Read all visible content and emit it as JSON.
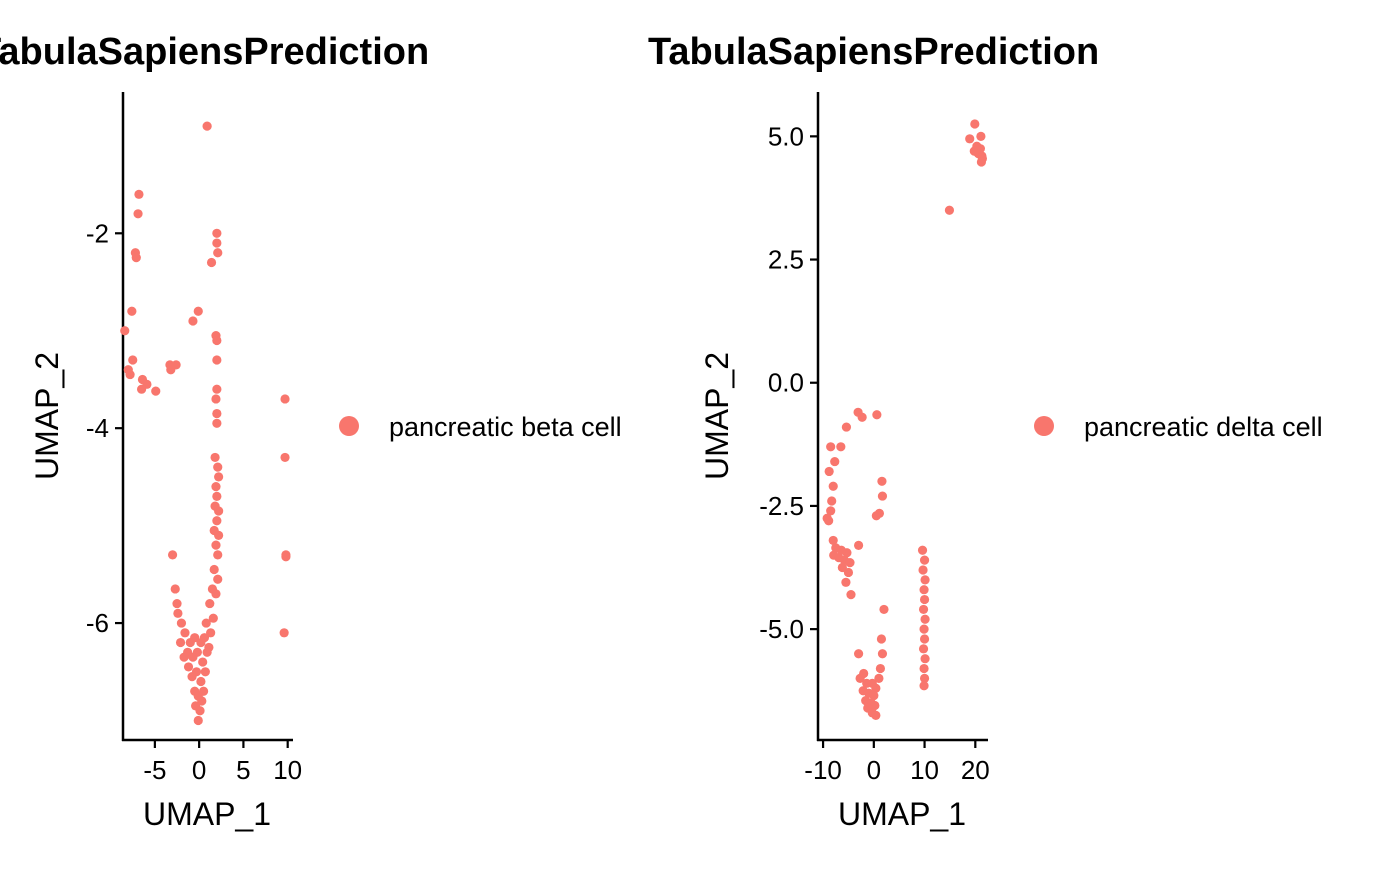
{
  "chart_data": [
    {
      "type": "scatter",
      "title": "TabulaSapiensPrediction",
      "xlabel": "UMAP_1",
      "ylabel": "UMAP_2",
      "xlim": [
        -8.6,
        10.6
      ],
      "ylim": [
        -7.2,
        -0.55
      ],
      "xticks": [
        -5,
        0,
        5,
        10
      ],
      "xtick_labels": [
        "-5",
        "0",
        "5",
        "10"
      ],
      "yticks": [
        -2,
        -4,
        -6
      ],
      "ytick_labels": [
        "-2",
        "-4",
        "-6"
      ],
      "grid": false,
      "legend": "right",
      "series": [
        {
          "name": "pancreatic beta cell",
          "color": "#F8766D",
          "points": [
            [
              0.9,
              -0.9
            ],
            [
              -6.8,
              -1.6
            ],
            [
              -6.9,
              -1.8
            ],
            [
              2.0,
              -2.0
            ],
            [
              2.0,
              -2.1
            ],
            [
              2.1,
              -2.2
            ],
            [
              -7.2,
              -2.2
            ],
            [
              -7.1,
              -2.25
            ],
            [
              1.4,
              -2.3
            ],
            [
              -7.6,
              -2.8
            ],
            [
              -0.1,
              -2.8
            ],
            [
              -0.7,
              -2.9
            ],
            [
              -8.4,
              -3.0
            ],
            [
              1.9,
              -3.05
            ],
            [
              2.0,
              -3.1
            ],
            [
              2.0,
              -3.3
            ],
            [
              -7.5,
              -3.3
            ],
            [
              -3.3,
              -3.35
            ],
            [
              -2.6,
              -3.35
            ],
            [
              -3.2,
              -3.4
            ],
            [
              -8.0,
              -3.4
            ],
            [
              -7.8,
              -3.45
            ],
            [
              -6.4,
              -3.5
            ],
            [
              -5.9,
              -3.55
            ],
            [
              -4.9,
              -3.62
            ],
            [
              -6.5,
              -3.6
            ],
            [
              2.0,
              -3.6
            ],
            [
              1.9,
              -3.7
            ],
            [
              2.0,
              -3.85
            ],
            [
              2.0,
              -3.95
            ],
            [
              9.7,
              -3.7
            ],
            [
              1.8,
              -4.3
            ],
            [
              9.7,
              -4.3
            ],
            [
              2.1,
              -4.4
            ],
            [
              2.2,
              -4.5
            ],
            [
              1.9,
              -4.6
            ],
            [
              2.0,
              -4.7
            ],
            [
              1.8,
              -4.8
            ],
            [
              2.2,
              -4.85
            ],
            [
              2.0,
              -4.95
            ],
            [
              1.7,
              -5.05
            ],
            [
              2.2,
              -5.1
            ],
            [
              1.9,
              -5.2
            ],
            [
              2.1,
              -5.3
            ],
            [
              -3.0,
              -5.3
            ],
            [
              9.8,
              -5.3
            ],
            [
              9.8,
              -5.32
            ],
            [
              1.7,
              -5.45
            ],
            [
              2.1,
              -5.55
            ],
            [
              1.5,
              -5.65
            ],
            [
              -2.7,
              -5.65
            ],
            [
              1.9,
              -5.7
            ],
            [
              -2.5,
              -5.8
            ],
            [
              1.2,
              -5.8
            ],
            [
              -2.4,
              -5.9
            ],
            [
              1.6,
              -5.95
            ],
            [
              -2.0,
              -6.0
            ],
            [
              0.8,
              -6.0
            ],
            [
              1.3,
              -6.1
            ],
            [
              9.6,
              -6.1
            ],
            [
              -1.6,
              -6.1
            ],
            [
              -0.5,
              -6.15
            ],
            [
              0.6,
              -6.15
            ],
            [
              -2.1,
              -6.2
            ],
            [
              -1.0,
              -6.2
            ],
            [
              0.2,
              -6.2
            ],
            [
              1.1,
              -6.25
            ],
            [
              -1.3,
              -6.3
            ],
            [
              -0.2,
              -6.3
            ],
            [
              0.9,
              -6.3
            ],
            [
              -1.7,
              -6.35
            ],
            [
              -0.7,
              -6.35
            ],
            [
              0.4,
              -6.4
            ],
            [
              -1.2,
              -6.45
            ],
            [
              -0.3,
              -6.5
            ],
            [
              0.7,
              -6.5
            ],
            [
              -0.8,
              -6.55
            ],
            [
              0.2,
              -6.6
            ],
            [
              -0.5,
              -6.7
            ],
            [
              0.5,
              -6.7
            ],
            [
              -0.1,
              -6.75
            ],
            [
              0.3,
              -6.8
            ],
            [
              -0.4,
              -6.85
            ],
            [
              0.1,
              -6.9
            ],
            [
              -0.1,
              -7.0
            ]
          ]
        }
      ]
    },
    {
      "type": "scatter",
      "title": "TabulaSapiensPrediction",
      "xlabel": "UMAP_1",
      "ylabel": "UMAP_2",
      "xlim": [
        -11,
        22.5
      ],
      "ylim": [
        -7.25,
        5.9
      ],
      "xticks": [
        -10,
        0,
        10,
        20
      ],
      "xtick_labels": [
        "-10",
        "0",
        "10",
        "20"
      ],
      "yticks": [
        5.0,
        2.5,
        0.0,
        -2.5,
        -5.0
      ],
      "ytick_labels": [
        "5.0",
        "2.5",
        "0.0",
        "-2.5",
        "-5.0"
      ],
      "grid": false,
      "legend": "right",
      "series": [
        {
          "name": "pancreatic delta cell",
          "color": "#F8766D",
          "points": [
            [
              19.9,
              5.25
            ],
            [
              21.1,
              5.0
            ],
            [
              18.9,
              4.95
            ],
            [
              20.3,
              4.8
            ],
            [
              21.0,
              4.75
            ],
            [
              19.8,
              4.7
            ],
            [
              20.6,
              4.65
            ],
            [
              21.3,
              4.6
            ],
            [
              21.4,
              4.55
            ],
            [
              21.2,
              4.48
            ],
            [
              14.9,
              3.5
            ],
            [
              -3.1,
              -0.6
            ],
            [
              0.6,
              -0.65
            ],
            [
              -2.3,
              -0.7
            ],
            [
              -5.4,
              -0.9
            ],
            [
              -8.5,
              -1.3
            ],
            [
              -6.5,
              -1.3
            ],
            [
              -7.7,
              -1.6
            ],
            [
              -8.8,
              -1.8
            ],
            [
              1.6,
              -2.0
            ],
            [
              -8.0,
              -2.1
            ],
            [
              1.7,
              -2.3
            ],
            [
              -8.3,
              -2.4
            ],
            [
              -8.5,
              -2.6
            ],
            [
              1.1,
              -2.65
            ],
            [
              0.5,
              -2.7
            ],
            [
              -9.2,
              -2.75
            ],
            [
              -8.9,
              -2.8
            ],
            [
              -8.0,
              -3.2
            ],
            [
              -3.0,
              -3.3
            ],
            [
              -7.5,
              -3.35
            ],
            [
              -6.4,
              -3.4
            ],
            [
              -5.3,
              -3.45
            ],
            [
              -7.9,
              -3.5
            ],
            [
              -6.9,
              -3.55
            ],
            [
              -5.8,
              -3.6
            ],
            [
              -4.7,
              -3.65
            ],
            [
              -6.2,
              -3.75
            ],
            [
              -5.0,
              -3.85
            ],
            [
              -5.5,
              -4.05
            ],
            [
              -4.5,
              -4.3
            ],
            [
              9.6,
              -3.4
            ],
            [
              10.0,
              -3.6
            ],
            [
              9.7,
              -3.8
            ],
            [
              10.1,
              -4.0
            ],
            [
              9.9,
              -4.2
            ],
            [
              10.0,
              -4.4
            ],
            [
              9.8,
              -4.6
            ],
            [
              10.1,
              -4.8
            ],
            [
              9.9,
              -5.0
            ],
            [
              10.0,
              -5.2
            ],
            [
              9.8,
              -5.4
            ],
            [
              10.1,
              -5.6
            ],
            [
              9.9,
              -5.8
            ],
            [
              10.0,
              -6.0
            ],
            [
              9.9,
              -6.15
            ],
            [
              2.0,
              -4.6
            ],
            [
              1.5,
              -5.2
            ],
            [
              1.7,
              -5.5
            ],
            [
              -3.0,
              -5.5
            ],
            [
              1.3,
              -5.8
            ],
            [
              -2.0,
              -5.9
            ],
            [
              -2.7,
              -6.0
            ],
            [
              1.0,
              -6.0
            ],
            [
              -1.4,
              -6.1
            ],
            [
              -0.3,
              -6.1
            ],
            [
              0.4,
              -6.2
            ],
            [
              -2.1,
              -6.25
            ],
            [
              -1.0,
              -6.3
            ],
            [
              0.0,
              -6.35
            ],
            [
              -1.6,
              -6.45
            ],
            [
              -0.5,
              -6.5
            ],
            [
              0.2,
              -6.55
            ],
            [
              -1.2,
              -6.6
            ],
            [
              -0.3,
              -6.7
            ],
            [
              0.4,
              -6.75
            ]
          ]
        }
      ]
    }
  ]
}
